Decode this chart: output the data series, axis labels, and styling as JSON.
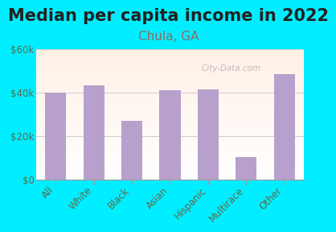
{
  "title": "Median per capita income in 2022",
  "subtitle": "Chula, GA",
  "categories": [
    "All",
    "White",
    "Black",
    "Asian",
    "Hispanic",
    "Multirace",
    "Other"
  ],
  "values": [
    40000,
    43500,
    27000,
    41000,
    41500,
    10500,
    48500
  ],
  "bar_color": "#b8a0cc",
  "background_outer": "#00eeff",
  "title_color": "#222222",
  "subtitle_color": "#996666",
  "tick_label_color": "#666644",
  "ylim": [
    0,
    60000
  ],
  "yticks": [
    0,
    20000,
    40000,
    60000
  ],
  "ytick_labels": [
    "$0",
    "$20k",
    "$40k",
    "$60k"
  ],
  "watermark": "City-Data.com",
  "title_fontsize": 15,
  "subtitle_fontsize": 11,
  "tick_fontsize": 8.5
}
